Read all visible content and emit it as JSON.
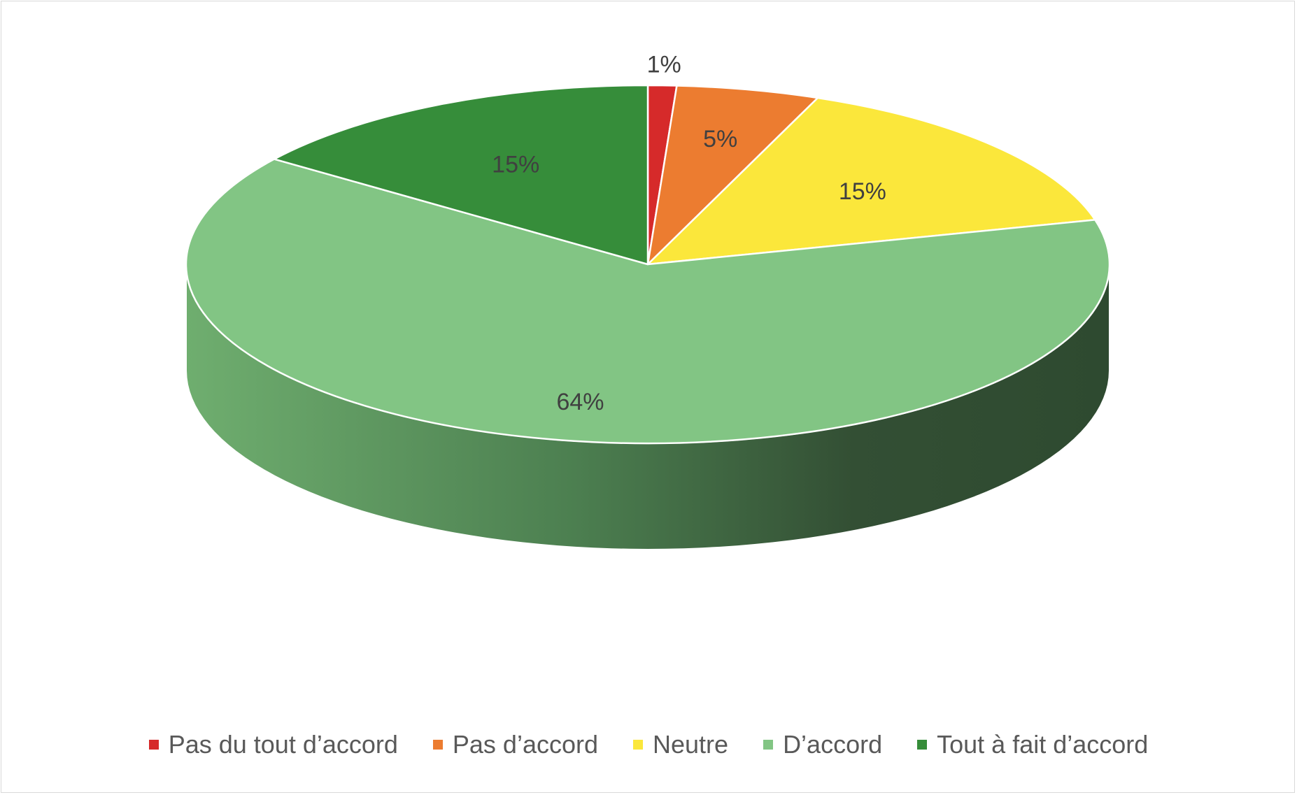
{
  "chart_data": {
    "type": "pie",
    "style": "3d",
    "categories": [
      "Pas du tout d’accord",
      "Pas d’accord",
      "Neutre",
      "D’accord",
      "Tout à fait d’accord"
    ],
    "values": [
      1,
      5,
      15,
      64,
      15
    ],
    "labels": [
      "1%",
      "5%",
      "15%",
      "64%",
      "15%"
    ],
    "colors": [
      "#d62a2a",
      "#ec7c30",
      "#fbe73b",
      "#82c584",
      "#368d3a"
    ],
    "legend_position": "bottom"
  }
}
